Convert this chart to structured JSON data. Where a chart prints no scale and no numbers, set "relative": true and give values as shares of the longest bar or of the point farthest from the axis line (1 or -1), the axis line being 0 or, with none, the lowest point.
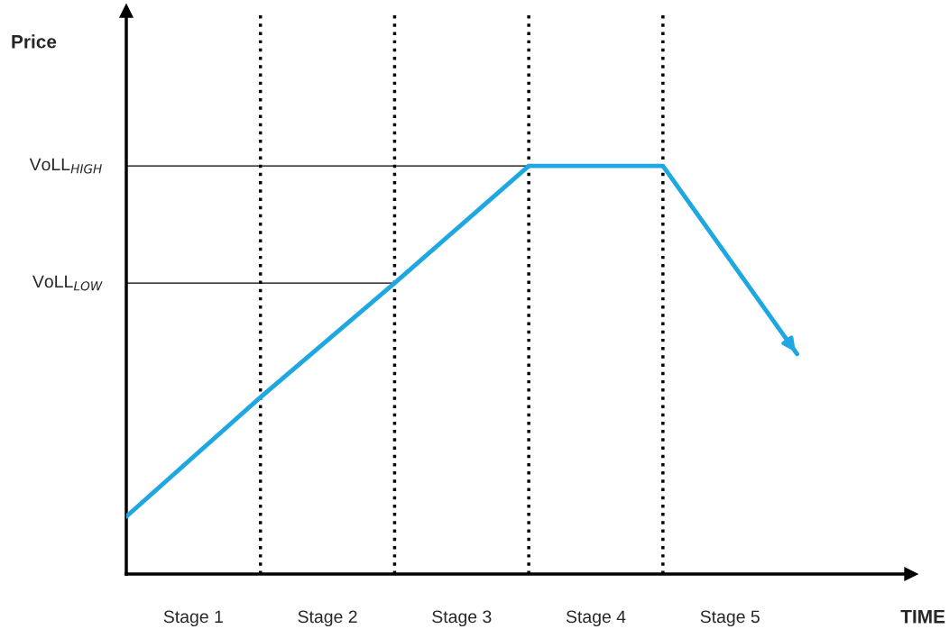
{
  "chart_data": {
    "type": "line",
    "relative": true,
    "xlabel": "TIME",
    "categories": [
      null,
      null,
      null,
      null,
      null,
      null
    ],
    "series": [
      {
        "color": "#1ea7e1",
        "values": [
          0.141,
          0.433,
          0.713,
          1,
          1,
          0.539
        ]
      }
    ],
    "annotations": [
      "Price",
      "Stage 1",
      "Stage 2",
      "Stage 3",
      "Stage 4",
      "Stage 5"
    ],
    "ref_lines": [
      {
        "axis": "y",
        "value": 1,
        "label": "VoLL$_{HIGH}$",
        "color": "#000000",
        "line_style": "solid"
      },
      {
        "axis": "y",
        "value": 0.713,
        "label": "VoLL$_{LOW}$",
        "color": "#000000",
        "line_style": "solid"
      }
    ],
    "grid": "x",
    "legend": false,
    "marker": "none",
    "line_style": "solid"
  }
}
